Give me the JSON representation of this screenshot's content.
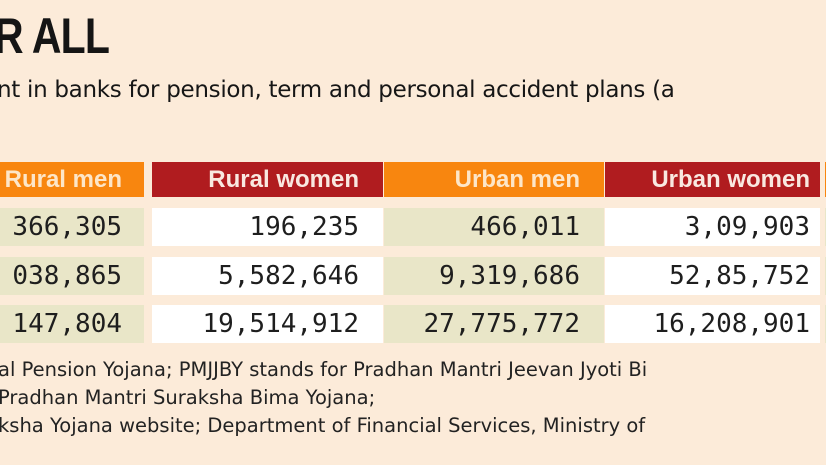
{
  "title": "R ALL",
  "subtitle": "nt in banks for pension, term and personal accident plans (a",
  "table": {
    "headers": [
      "Rural men",
      "Rural women",
      "Urban men",
      "Urban women"
    ],
    "rows": [
      [
        "366,305",
        "196,235",
        "466,011",
        "3,09,903"
      ],
      [
        "038,865",
        "5,582,646",
        "9,319,686",
        "52,85,752"
      ],
      [
        "147,804",
        "19,514,912",
        "27,775,772",
        "16,208,901"
      ]
    ]
  },
  "colors": {
    "background": "#fcebd9",
    "header_orange": "#f8860f",
    "header_red": "#b01c1f",
    "cell_tan": "#e9e6c8",
    "cell_white": "#ffffff"
  },
  "notes": [
    "al Pension Yojana; PMJJBY stands for Pradhan Mantri Jeevan Jyoti Bi",
    " Pradhan Mantri Suraksha Bima Yojana;",
    "ksha Yojana website; Department of Financial Services, Ministry of"
  ]
}
